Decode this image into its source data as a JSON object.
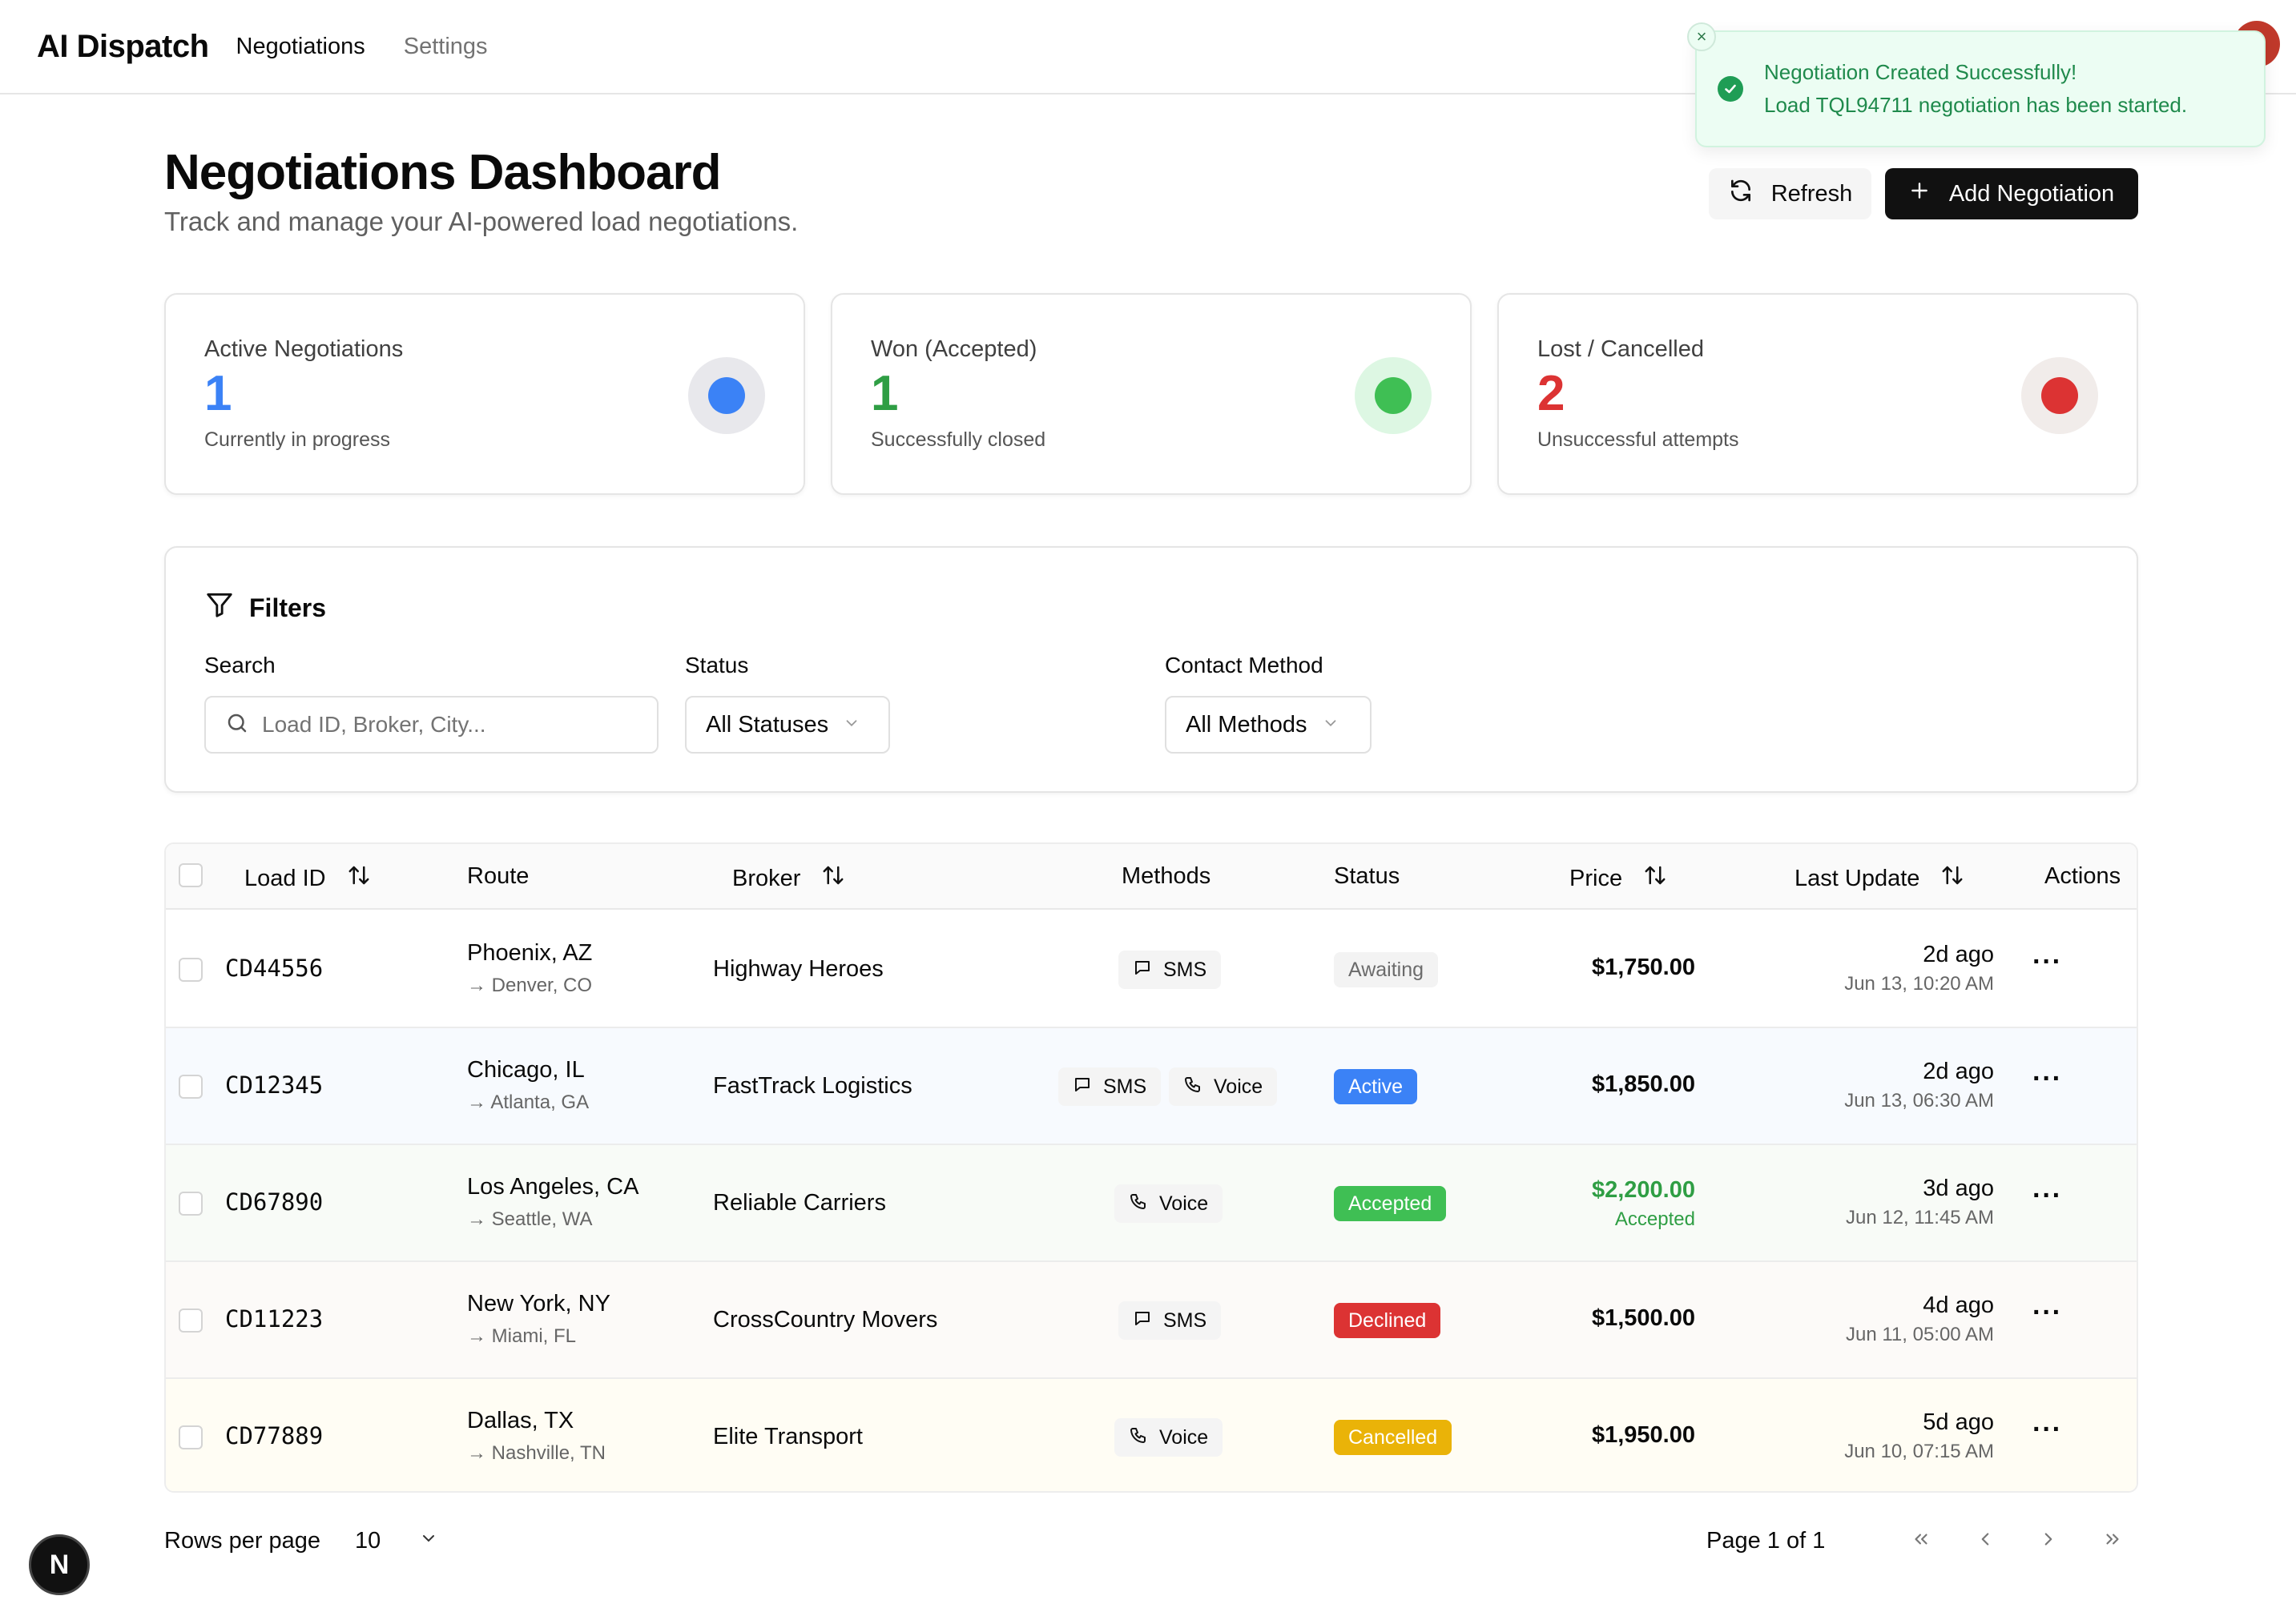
{
  "nav": {
    "brand": "AI Dispatch",
    "links": [
      "Negotiations",
      "Settings"
    ]
  },
  "toast": {
    "title": "Negotiation Created Successfully!",
    "body": "Load TQL94711 negotiation has been started.",
    "close": "×"
  },
  "header": {
    "title": "Negotiations Dashboard",
    "subtitle": "Track and manage your AI-powered load negotiations.",
    "refresh_label": "Refresh",
    "add_label": "Add Negotiation"
  },
  "cards": [
    {
      "label": "Active Negotiations",
      "value": "1",
      "desc": "Currently in progress",
      "color": "#3b82f6",
      "ring": "#e8e8ec"
    },
    {
      "label": "Won (Accepted)",
      "value": "1",
      "desc": "Successfully closed",
      "color": "#3fbf54",
      "ring": "#ddf7e3"
    },
    {
      "label": "Lost / Cancelled",
      "value": "2",
      "desc": "Unsuccessful attempts",
      "color": "#dc3333",
      "ring": "#f1ecea"
    }
  ],
  "filters": {
    "title": "Filters",
    "search_label": "Search",
    "search_placeholder": "Load ID, Broker, City...",
    "status_label": "Status",
    "status_value": "All Statuses",
    "method_label": "Contact Method",
    "method_value": "All Methods"
  },
  "table": {
    "headers": {
      "load_id": "Load ID",
      "route": "Route",
      "broker": "Broker",
      "methods": "Methods",
      "status": "Status",
      "price": "Price",
      "last_update": "Last Update",
      "actions": "Actions"
    },
    "rows": [
      {
        "id": "CD44556",
        "from": "Phoenix, AZ",
        "to": "→ Denver, CO",
        "broker": "Highway Heroes",
        "methods": [
          "SMS"
        ],
        "status": "Awaiting",
        "price": "$1,750.00",
        "price_sub": "",
        "ago": "2d ago",
        "date": "Jun 13, 10:20 AM"
      },
      {
        "id": "CD12345",
        "from": "Chicago, IL",
        "to": "→ Atlanta, GA",
        "broker": "FastTrack Logistics",
        "methods": [
          "SMS",
          "Voice"
        ],
        "status": "Active",
        "price": "$1,850.00",
        "price_sub": "",
        "ago": "2d ago",
        "date": "Jun 13, 06:30 AM"
      },
      {
        "id": "CD67890",
        "from": "Los Angeles, CA",
        "to": "→ Seattle, WA",
        "broker": "Reliable Carriers",
        "methods": [
          "Voice"
        ],
        "status": "Accepted",
        "price": "$2,200.00",
        "price_sub": "Accepted",
        "ago": "3d ago",
        "date": "Jun 12, 11:45 AM"
      },
      {
        "id": "CD11223",
        "from": "New York, NY",
        "to": "→ Miami, FL",
        "broker": "CrossCountry Movers",
        "methods": [
          "SMS"
        ],
        "status": "Declined",
        "price": "$1,500.00",
        "price_sub": "",
        "ago": "4d ago",
        "date": "Jun 11, 05:00 AM"
      },
      {
        "id": "CD77889",
        "from": "Dallas, TX",
        "to": "→ Nashville, TN",
        "broker": "Elite Transport",
        "methods": [
          "Voice"
        ],
        "status": "Cancelled",
        "price": "$1,950.00",
        "price_sub": "",
        "ago": "5d ago",
        "date": "Jun 10, 07:15 AM"
      }
    ]
  },
  "status_styles": {
    "Awaiting": {
      "bg": "#f3f3f3",
      "fg": "#6b6b6b"
    },
    "Active": {
      "bg": "#3b82f6",
      "fg": "#ffffff"
    },
    "Accepted": {
      "bg": "#3fbf54",
      "fg": "#ffffff"
    },
    "Declined": {
      "bg": "#dc3333",
      "fg": "#ffffff"
    },
    "Cancelled": {
      "bg": "#eab308",
      "fg": "#ffffff"
    }
  },
  "row_tints": [
    "#ffffff",
    "#f7fafe",
    "#f8fbf7",
    "#fcfaf8",
    "#fffdf4"
  ],
  "pagination": {
    "rows_per_page_label": "Rows per page",
    "rows_per_page_value": "10",
    "page_info": "Page 1 of 1"
  },
  "next_badge": "N"
}
